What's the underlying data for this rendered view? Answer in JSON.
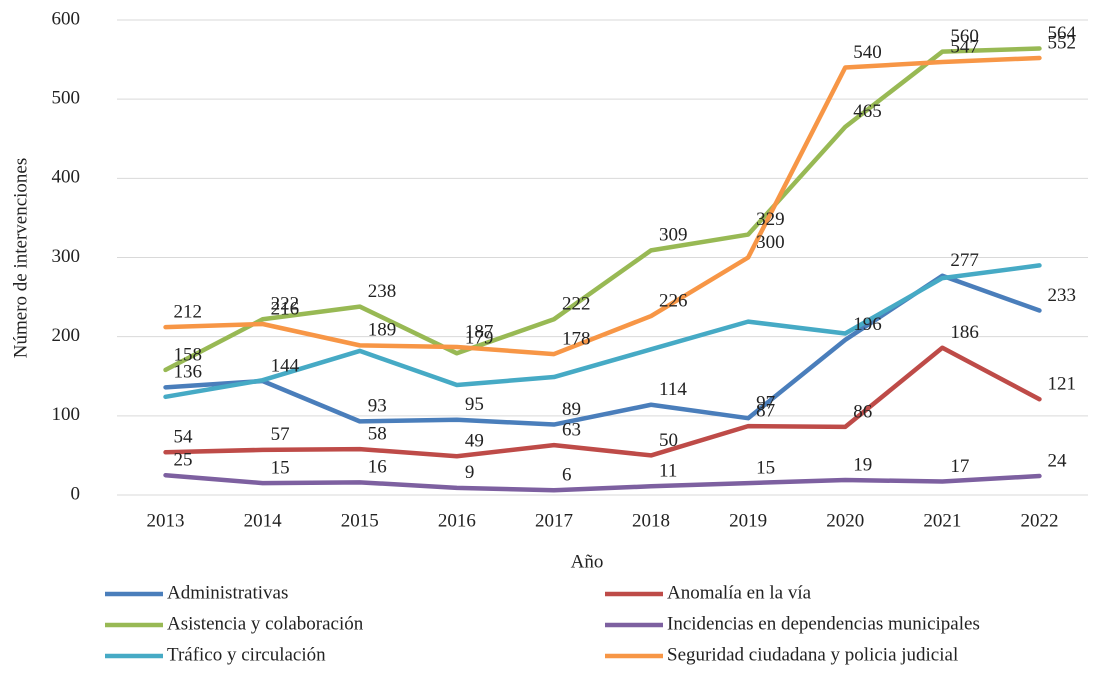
{
  "chart_data": {
    "type": "line",
    "x_label": "Año",
    "y_label": "Número de intervenciones",
    "categories": [
      "2013",
      "2014",
      "2015",
      "2016",
      "2017",
      "2018",
      "2019",
      "2020",
      "2021",
      "2022"
    ],
    "ylim": [
      0,
      600
    ],
    "yticks": [
      0,
      100,
      200,
      300,
      400,
      500,
      600
    ],
    "grid": true,
    "legend": "bottom",
    "series": [
      {
        "name": "Administrativas",
        "color": "#4a7ebb",
        "data_labels": true,
        "values": [
          136,
          144,
          93,
          95,
          89,
          114,
          97,
          196,
          277,
          233
        ]
      },
      {
        "name": "Anomalía en la vía",
        "color": "#be4b48",
        "data_labels": true,
        "values": [
          54,
          57,
          58,
          49,
          63,
          50,
          87,
          86,
          186,
          121
        ]
      },
      {
        "name": "Asistencia y colaboración",
        "color": "#98b954",
        "data_labels": true,
        "values": [
          158,
          222,
          238,
          179,
          222,
          309,
          329,
          465,
          560,
          564
        ]
      },
      {
        "name": "Incidencias en dependencias municipales",
        "color": "#7d60a0",
        "data_labels": true,
        "values": [
          25,
          15,
          16,
          9,
          6,
          11,
          15,
          19,
          17,
          24
        ]
      },
      {
        "name": "Tráfico y circulación",
        "color": "#46aac5",
        "data_labels": false,
        "values": [
          124,
          145,
          182,
          139,
          149,
          184,
          219,
          204,
          274,
          290
        ]
      },
      {
        "name": "Seguridad ciudadana y policia judicial",
        "color": "#f79646",
        "data_labels": true,
        "values": [
          212,
          216,
          189,
          187,
          178,
          226,
          300,
          540,
          547,
          552
        ]
      }
    ]
  }
}
